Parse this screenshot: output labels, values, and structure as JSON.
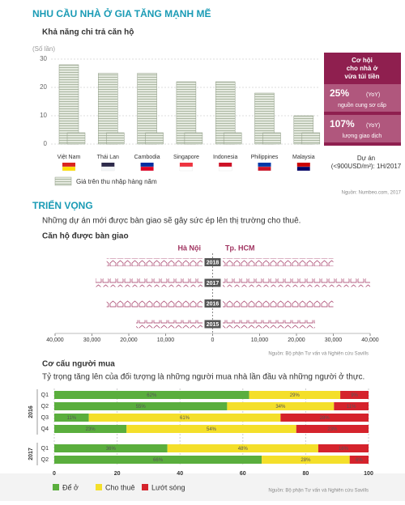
{
  "header": {
    "title": "NHU CẦU NHÀ Ở GIA TĂNG MẠNH MẼ"
  },
  "section2": {
    "title": "TRIỂN VỌNG",
    "text": "Những dự án mới được bàn giao sẽ gây sức ép lên thị trường cho thuê."
  },
  "callout": {
    "title": [
      "Cơ hội",
      "cho nhà ở",
      "vừa túi tiền"
    ],
    "stats": [
      {
        "value": "25%",
        "unit": "(YoY)",
        "label": "nguồn cung sơ cấp"
      },
      {
        "value": "107%",
        "unit": "(YoY)",
        "label": "lượng giao dịch"
      }
    ]
  },
  "chart_data": [
    {
      "type": "bar",
      "title": "Khả năng chi trả căn hộ",
      "y_label": "(Số lần)",
      "categories": [
        "Việt Nam",
        "Thái Lan",
        "Cambodia",
        "Singapore",
        "Indonesia",
        "Philippines",
        "Malaysia"
      ],
      "series": [
        {
          "name": "Giá trên thu nhập hàng năm",
          "color": "#c9d3c2",
          "values": [
            28,
            25,
            25,
            22,
            22,
            18,
            10
          ]
        }
      ],
      "ylim": [
        0,
        30
      ],
      "yticks": [
        0,
        10,
        20,
        30
      ],
      "grid": true,
      "annotation": [
        "Dự án",
        "(<900USD/m²): 1H/2017"
      ],
      "source": "Nguồn: Numbeo.com, 2017"
    },
    {
      "type": "butterfly",
      "title": "Căn hộ được bàn giao",
      "categories": [
        "2018",
        "2017",
        "2016",
        "2015"
      ],
      "series": [
        {
          "name": "Hà Nội",
          "color": "#a0325f",
          "values": [
            26000,
            29000,
            26000,
            18000
          ]
        },
        {
          "name": "Tp. HCM",
          "color": "#a0325f",
          "values": [
            30000,
            40000,
            30000,
            25000
          ]
        }
      ],
      "xlim": [
        0,
        40000
      ],
      "xticks": [
        0,
        {
          "value": 10000,
          "label": "10,000"
        },
        {
          "value": 20000,
          "label": "20,000"
        },
        {
          "value": 30000,
          "label": "30,000"
        },
        {
          "value": 40000,
          "label": "40,000"
        }
      ],
      "source": "Nguồn: Bộ phận Tư vấn và Nghiên cứu Savills"
    },
    {
      "type": "stacked_bar_h",
      "title": "Cơ cấu người mua",
      "subtitle": "Tỷ trọng tăng lên của đối tượng là những người mua nhà lần đầu và những người ở thực.",
      "groups": [
        {
          "name": "2016",
          "categories": [
            "Q1",
            "Q2",
            "Q3",
            "Q4"
          ]
        },
        {
          "name": "2017",
          "categories": [
            "Q1",
            "Q2"
          ]
        }
      ],
      "series": [
        {
          "name": "Để ở",
          "color": "#5aae3d",
          "values": [
            62,
            55,
            11,
            23,
            36,
            66
          ],
          "value_labels": [
            "62%",
            "55%",
            "11%",
            "23%",
            "36%",
            "66%"
          ]
        },
        {
          "name": "Cho thuê",
          "color": "#f4df2a",
          "values": [
            29,
            34,
            61,
            54,
            48,
            28
          ],
          "value_labels": [
            "29%",
            "34%",
            "61%",
            "54%",
            "48%",
            "28%"
          ]
        },
        {
          "name": "Lướt sóng",
          "color": "#d5232c",
          "values": [
            9,
            11,
            28,
            23,
            16,
            6
          ],
          "value_labels": [
            "9%",
            "11%",
            "28%",
            "23%",
            "16%",
            "6%"
          ]
        }
      ],
      "xlim": [
        0,
        100
      ],
      "xticks": [
        0,
        20,
        40,
        60,
        80,
        100
      ],
      "source": "Nguồn: Bộ phận Tư vấn và Nghiên cứu Savills"
    }
  ]
}
